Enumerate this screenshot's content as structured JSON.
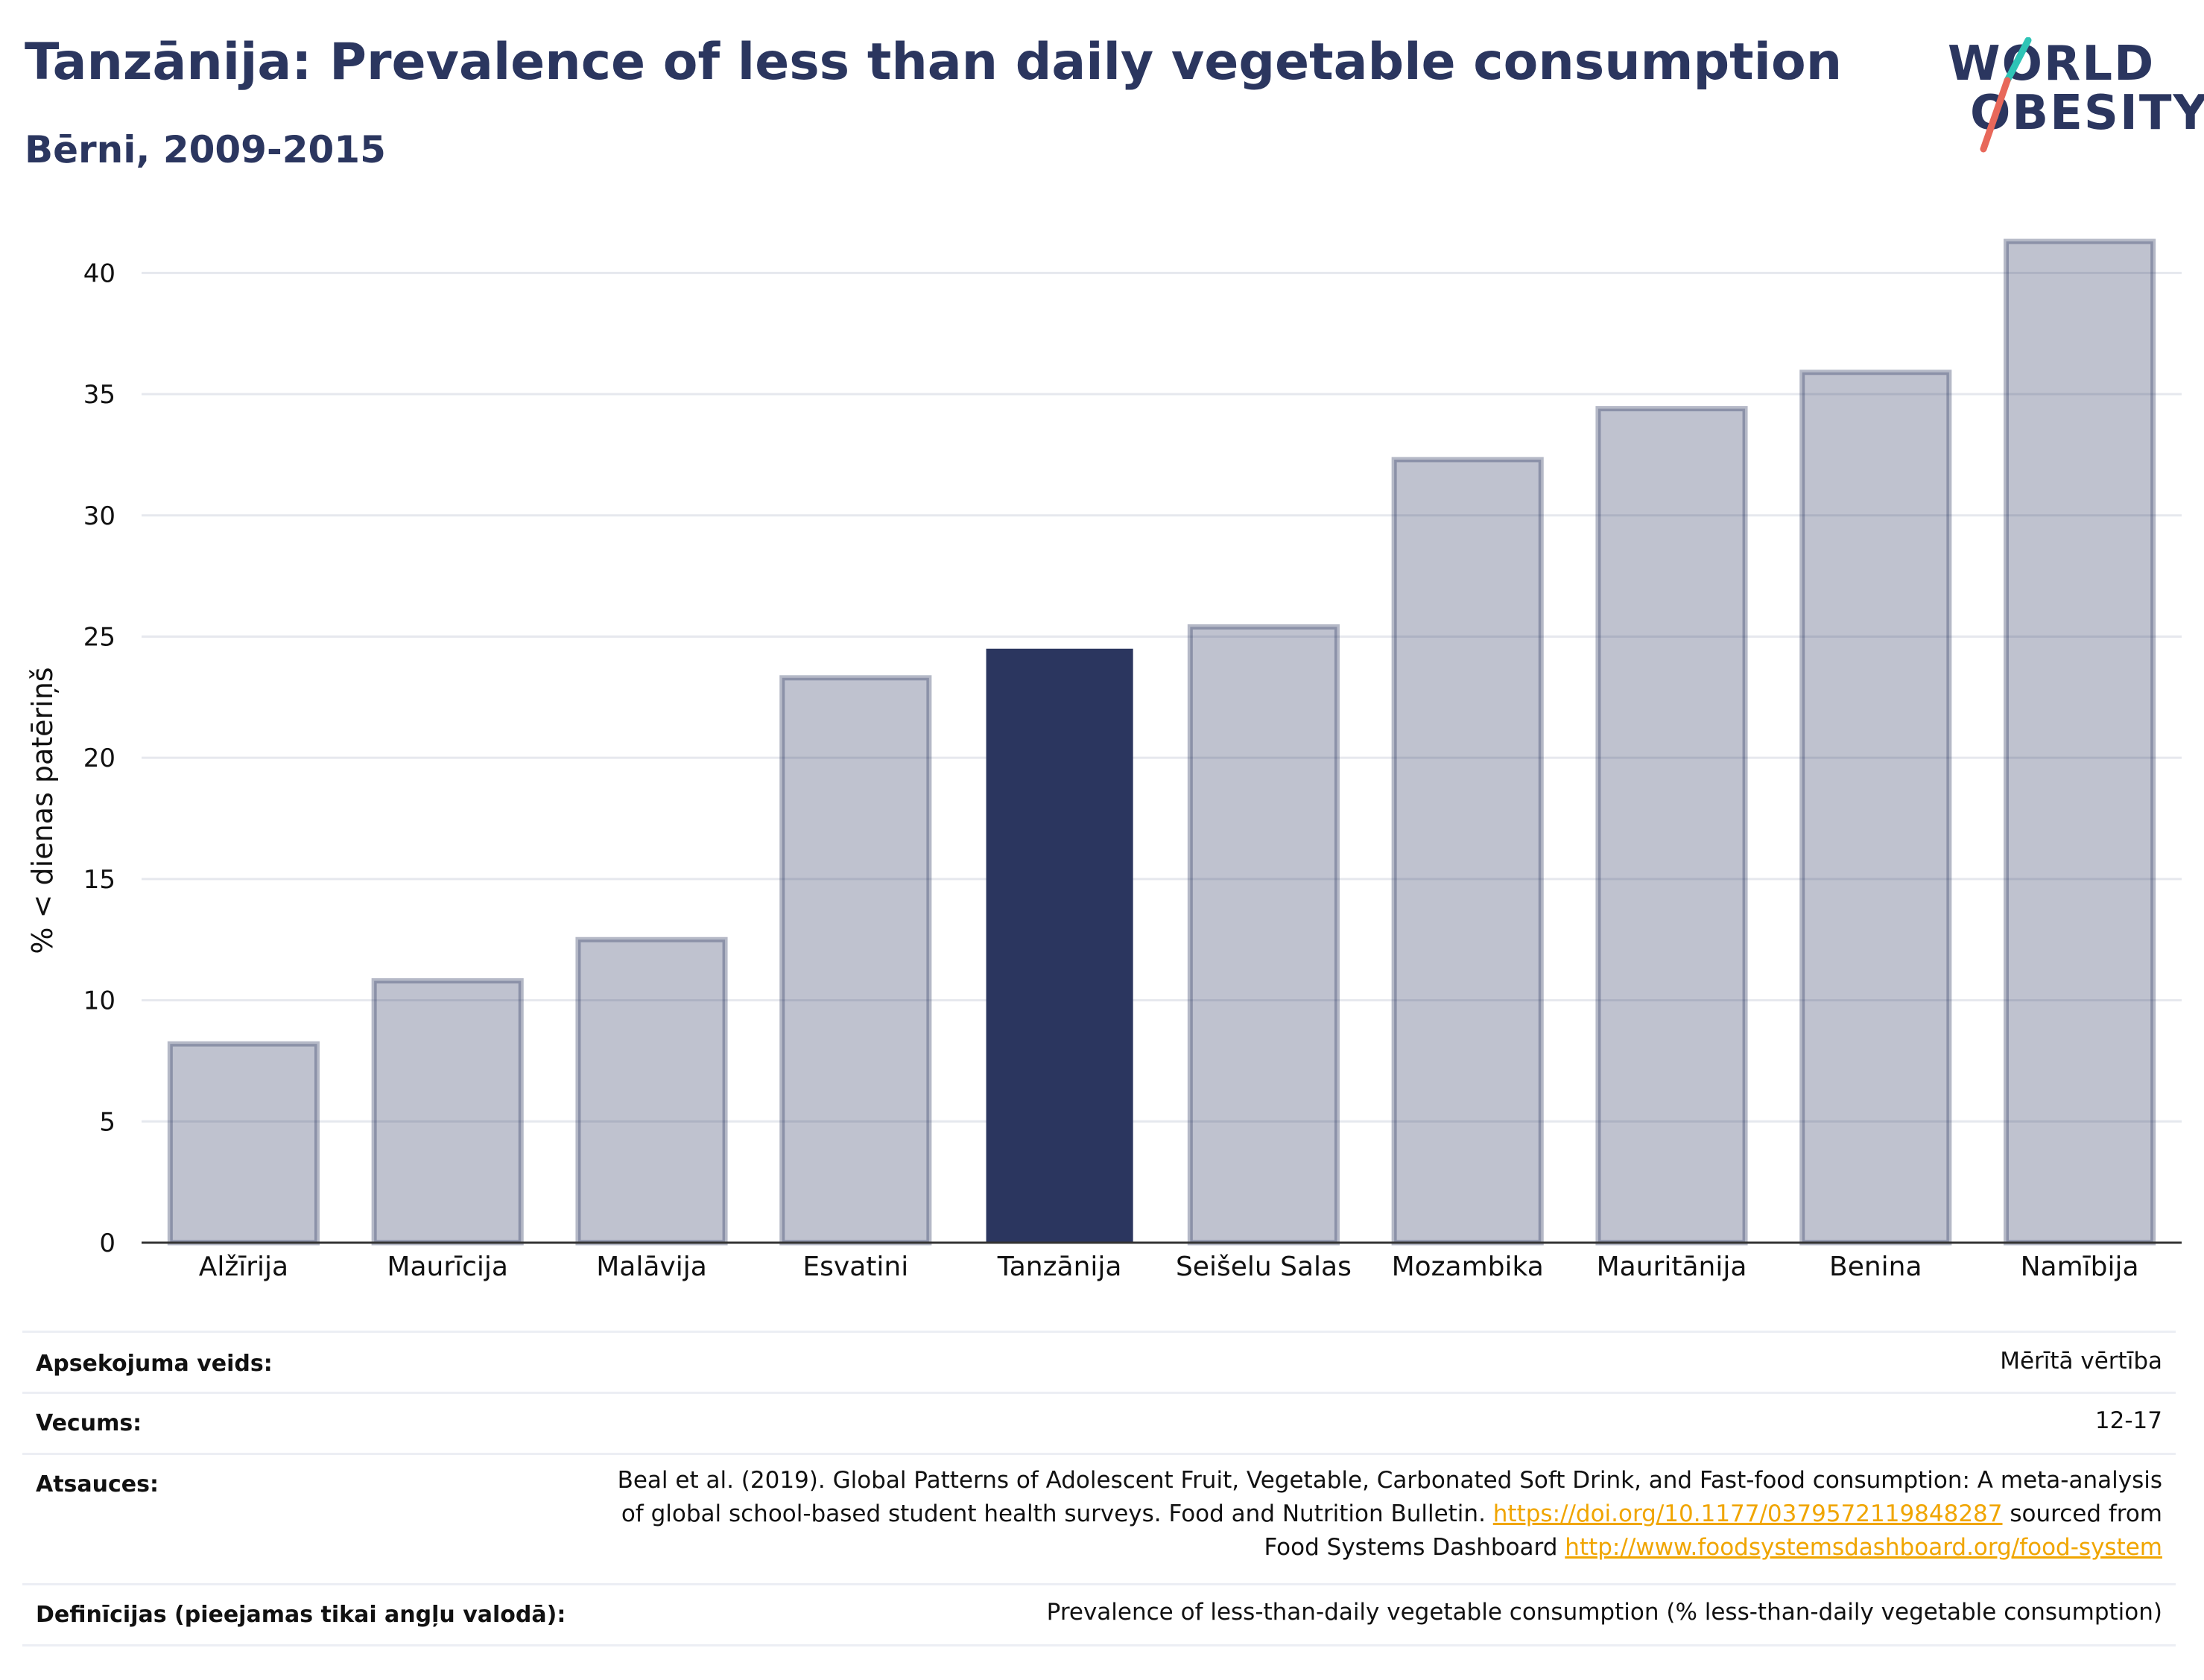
{
  "header": {
    "title": "Tanzānija: Prevalence of less than daily vegetable consumption",
    "subtitle": "Bērni, 2009-2015"
  },
  "logo": {
    "line1": "WORLD",
    "line2": "OBESITY",
    "slash_colors": [
      "#2ec4b6",
      "#e8685a"
    ]
  },
  "colors": {
    "highlight": "#2b365f",
    "bar": "#2b365f",
    "bar_opacity": 0.3,
    "link": "#f0a500"
  },
  "chart_data": {
    "type": "bar",
    "categories": [
      "Alžīrija",
      "Maurīcija",
      "Malāvija",
      "Esvatini",
      "Tanzānija",
      "Seišelu Salas",
      "Mozambika",
      "Mauritānija",
      "Benina",
      "Namībija"
    ],
    "values": [
      8.2,
      10.8,
      12.5,
      23.3,
      24.5,
      25.4,
      32.3,
      34.4,
      35.9,
      41.3
    ],
    "highlight": "Tanzānija",
    "ylabel": "% < dienas patēriņš",
    "ylim": [
      0,
      42.5
    ],
    "yticks": [
      0,
      5,
      10,
      15,
      20,
      25,
      30,
      35,
      40
    ],
    "grid": true
  },
  "info": {
    "survey_label": "Apsekojuma veids:",
    "survey_value": "Mērītā vērtība",
    "age_label": "Vecums:",
    "age_value": "12-17",
    "refs_label": "Atsauces:",
    "refs_line1": "Beal et al. (2019). Global Patterns of Adolescent Fruit, Vegetable, Carbonated Soft Drink, and Fast-food consumption: A meta-analysis",
    "refs_line2a": "of global school-based student health surveys. Food and Nutrition Bulletin. ",
    "refs_link1": "https://doi.org/10.1177/0379572119848287",
    "refs_line2b": " sourced from",
    "refs_line3a": "Food Systems Dashboard ",
    "refs_link2": "http://www.foodsystemsdashboard.org/food-system",
    "def_label": "Definīcijas (pieejamas tikai angļu valodā):",
    "def_value": "Prevalence of less-than-daily vegetable consumption (% less-than-daily vegetable consumption)"
  }
}
